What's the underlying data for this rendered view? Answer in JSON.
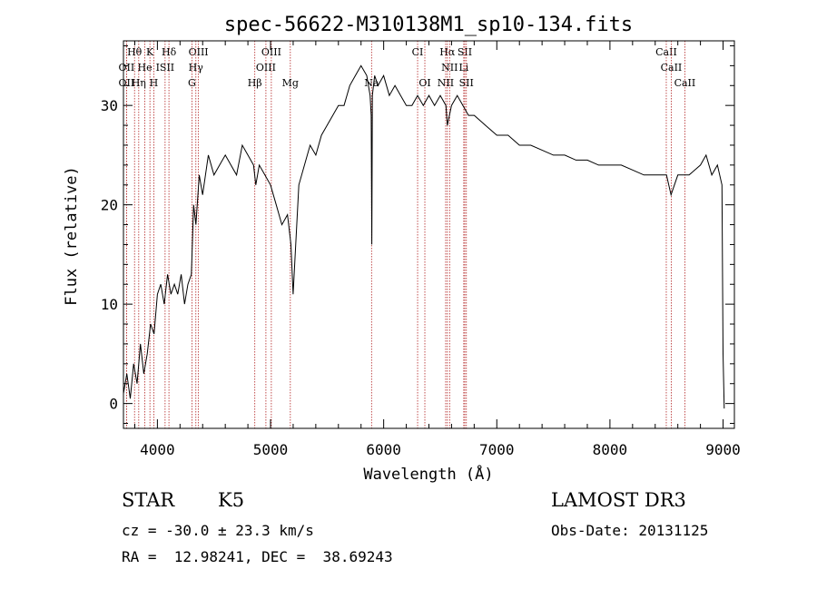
{
  "chart_data": {
    "type": "line",
    "title": "spec-56622-M310138M1_sp10-134.fits",
    "xlabel": "Wavelength (Å)",
    "ylabel": "Flux (relative)",
    "xlim": [
      3700,
      9100
    ],
    "ylim": [
      -2.5,
      36.5
    ],
    "xticks": [
      4000,
      5000,
      6000,
      7000,
      8000,
      9000
    ],
    "yticks": [
      0,
      10,
      20,
      30
    ],
    "grid": false,
    "series": [
      {
        "name": "flux",
        "x": [
          3700,
          3730,
          3760,
          3790,
          3820,
          3850,
          3880,
          3910,
          3940,
          3970,
          4000,
          4030,
          4060,
          4090,
          4120,
          4150,
          4180,
          4210,
          4240,
          4270,
          4300,
          4320,
          4340,
          4370,
          4400,
          4450,
          4500,
          4550,
          4600,
          4650,
          4700,
          4750,
          4800,
          4850,
          4870,
          4900,
          4950,
          5000,
          5050,
          5100,
          5150,
          5180,
          5200,
          5250,
          5300,
          5350,
          5400,
          5450,
          5500,
          5550,
          5600,
          5650,
          5700,
          5750,
          5800,
          5850,
          5880,
          5890,
          5895,
          5900,
          5920,
          5950,
          6000,
          6050,
          6100,
          6150,
          6200,
          6250,
          6300,
          6350,
          6400,
          6450,
          6500,
          6550,
          6563,
          6600,
          6650,
          6700,
          6750,
          6800,
          6900,
          7000,
          7100,
          7200,
          7300,
          7400,
          7500,
          7600,
          7700,
          7800,
          7900,
          8000,
          8100,
          8200,
          8300,
          8400,
          8500,
          8540,
          8600,
          8700,
          8800,
          8850,
          8900,
          8950,
          8990,
          9000,
          9010
        ],
        "y": [
          1,
          3,
          0.5,
          4,
          2,
          6,
          3,
          5,
          8,
          7,
          11,
          12,
          10,
          13,
          11,
          12,
          11,
          13,
          10,
          12,
          13,
          20,
          18,
          23,
          21,
          25,
          23,
          24,
          25,
          24,
          23,
          26,
          25,
          24,
          22,
          24,
          23,
          22,
          20,
          18,
          19,
          16,
          11,
          22,
          24,
          26,
          25,
          27,
          28,
          29,
          30,
          30,
          32,
          33,
          34,
          33,
          31,
          29,
          16,
          31,
          33,
          32,
          33,
          31,
          32,
          31,
          30,
          30,
          31,
          30,
          31,
          30,
          31,
          30,
          28,
          30,
          31,
          30,
          29,
          29,
          28,
          27,
          27,
          26,
          26,
          25.5,
          25,
          25,
          24.5,
          24.5,
          24,
          24,
          24,
          23.5,
          23,
          23,
          23,
          21,
          23,
          23,
          24,
          25,
          23,
          24,
          22,
          5,
          -0.5
        ]
      }
    ],
    "emission_lines": [
      {
        "label": "Hθ",
        "wl": 3798,
        "row": 0
      },
      {
        "label": "K",
        "wl": 3934,
        "row": 0
      },
      {
        "label": "Hδ",
        "wl": 4102,
        "row": 0
      },
      {
        "label": "OIII",
        "wl": 4363,
        "row": 0
      },
      {
        "label": "OIII",
        "wl": 5007,
        "row": 0
      },
      {
        "label": "CI",
        "wl": 6300,
        "row": 0
      },
      {
        "label": "Hα",
        "wl": 6563,
        "row": 0
      },
      {
        "label": "SII",
        "wl": 6717,
        "row": 0
      },
      {
        "label": "CaII",
        "wl": 8498,
        "row": 0
      },
      {
        "label": "OII",
        "wl": 3727,
        "row": 1
      },
      {
        "label": "He",
        "wl": 3889,
        "row": 1
      },
      {
        "label": "ISII",
        "wl": 4068,
        "row": 1
      },
      {
        "label": "Hγ",
        "wl": 4340,
        "row": 1
      },
      {
        "label": "OIII",
        "wl": 4959,
        "row": 1
      },
      {
        "label": "NII",
        "wl": 6583,
        "row": 1
      },
      {
        "label": "Li",
        "wl": 6708,
        "row": 1
      },
      {
        "label": "CaII",
        "wl": 8542,
        "row": 1
      },
      {
        "label": "OII",
        "wl": 3727,
        "row": 2
      },
      {
        "label": "Hη",
        "wl": 3835,
        "row": 2
      },
      {
        "label": "H",
        "wl": 3968,
        "row": 2
      },
      {
        "label": "G",
        "wl": 4305,
        "row": 2
      },
      {
        "label": "Hβ",
        "wl": 4861,
        "row": 2
      },
      {
        "label": "Mg",
        "wl": 5175,
        "row": 2
      },
      {
        "label": "Na",
        "wl": 5893,
        "row": 2
      },
      {
        "label": "OI",
        "wl": 6364,
        "row": 2
      },
      {
        "label": "NII",
        "wl": 6548,
        "row": 2
      },
      {
        "label": "SII",
        "wl": 6731,
        "row": 2
      },
      {
        "label": "CaII",
        "wl": 8662,
        "row": 2
      }
    ]
  },
  "info": {
    "object_class": "STAR",
    "subclass": "K5",
    "survey": "LAMOST DR3",
    "redshift": "cz = -30.0 ± 23.3 km/s",
    "obs_date": "Obs-Date: 20131125",
    "coords": "RA =  12.98241, DEC =  38.69243"
  }
}
